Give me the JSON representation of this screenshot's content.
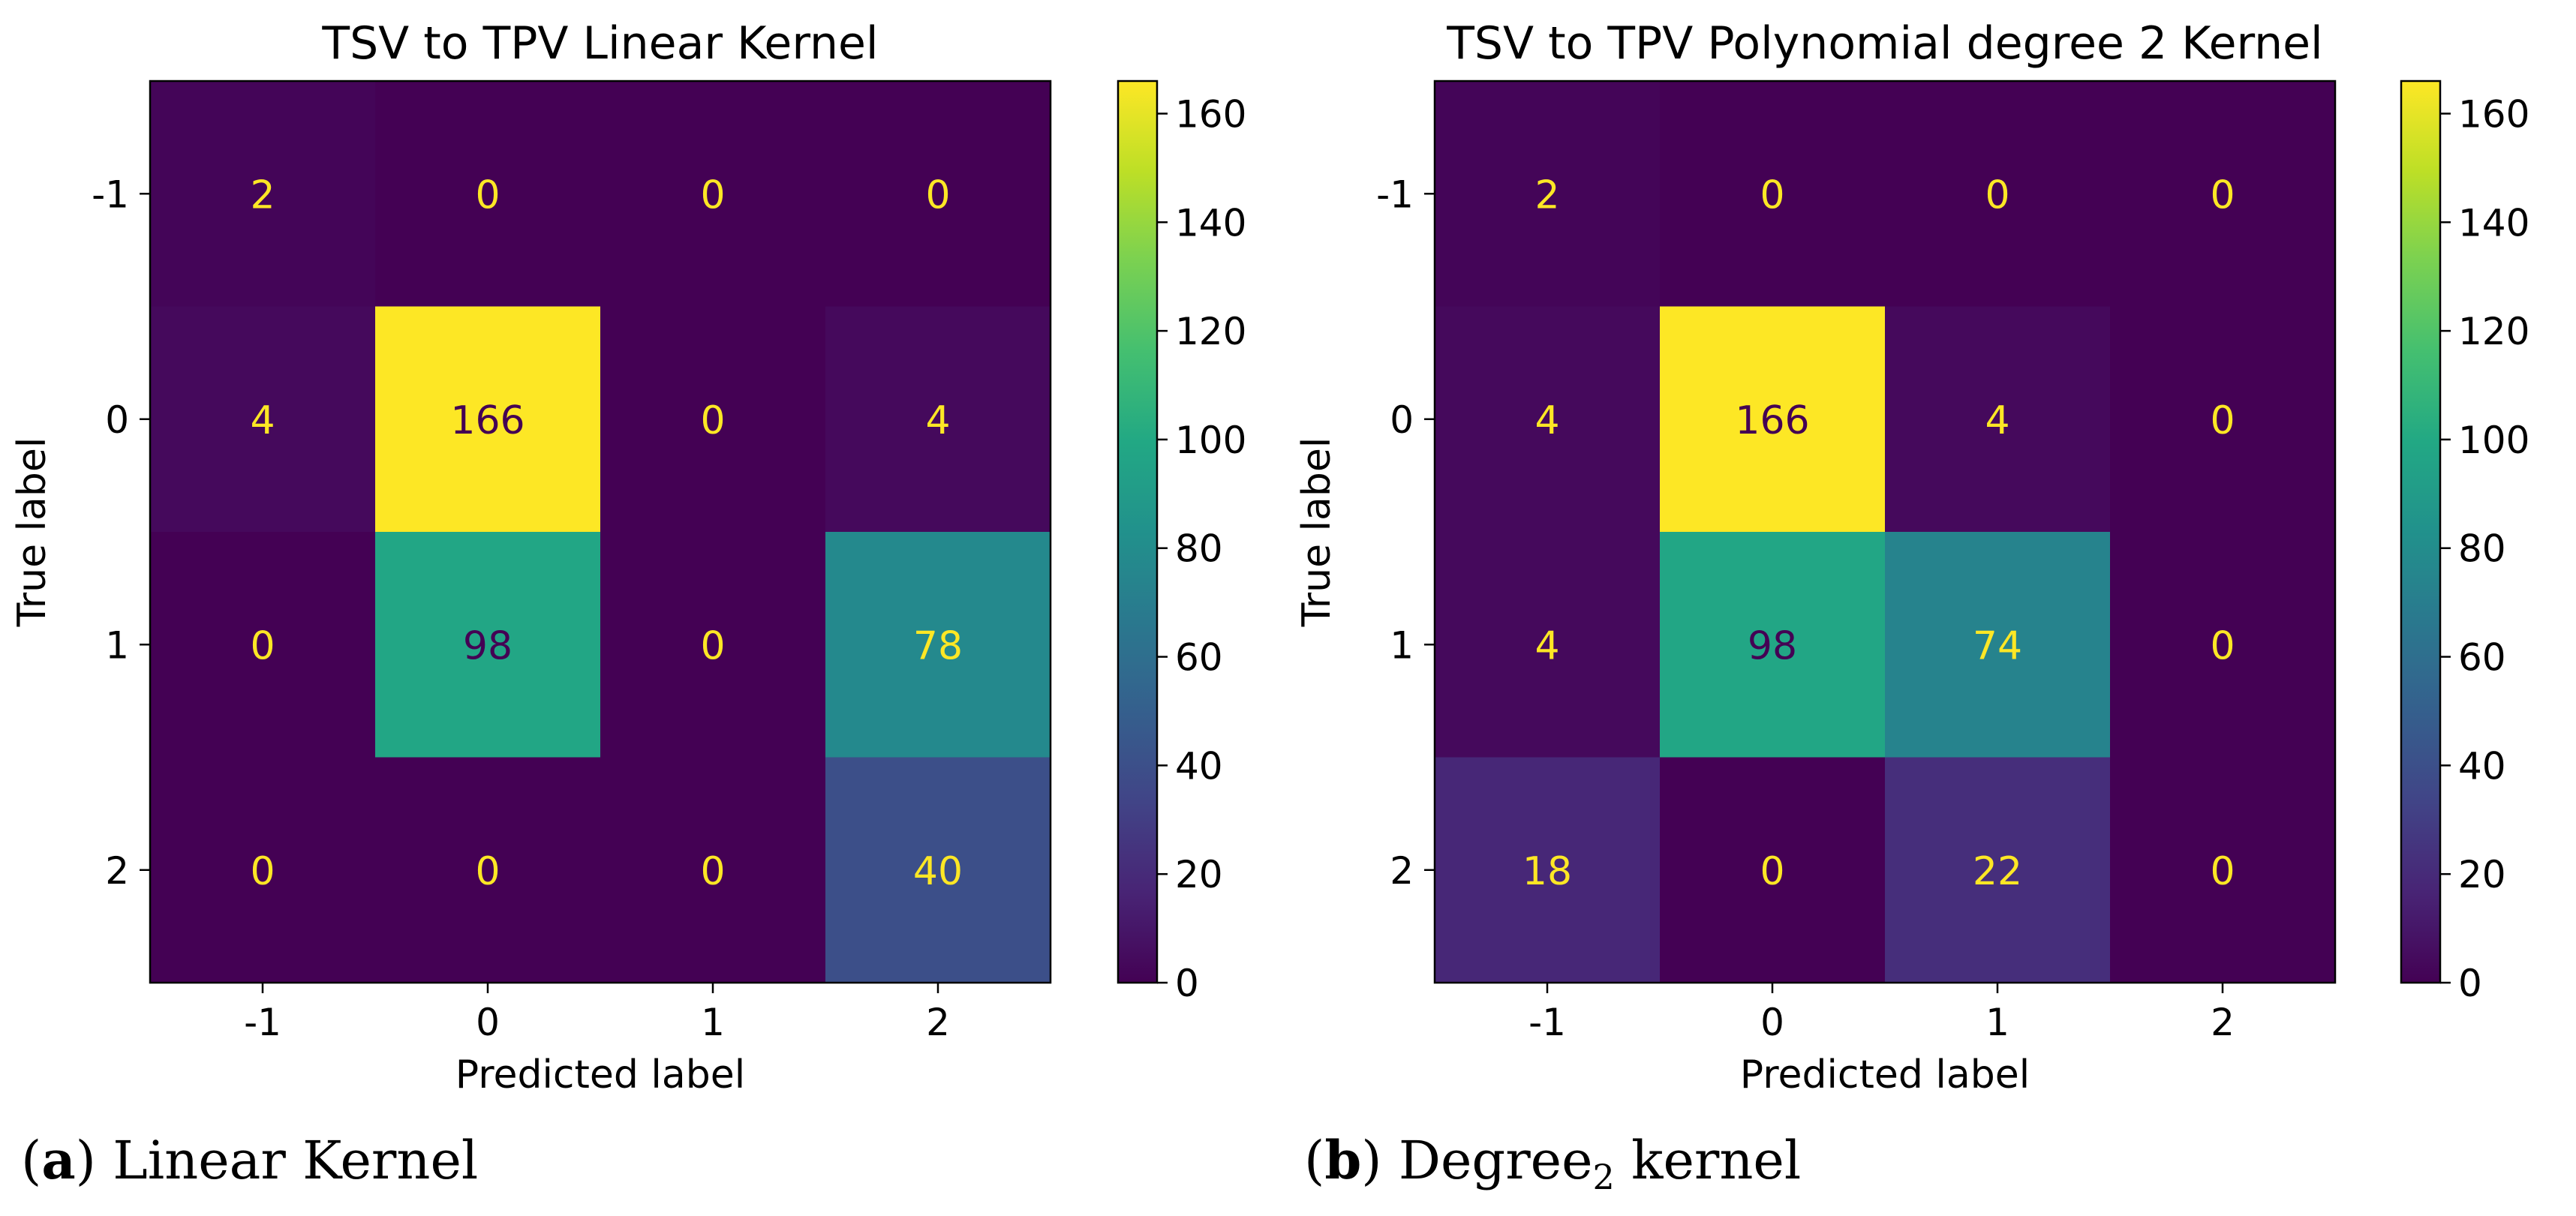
{
  "chart_data": [
    {
      "type": "heatmap",
      "title": "TSV to TPV Linear Kernel",
      "xlabel": "Predicted label",
      "ylabel": "True label",
      "x_tick_labels": [
        "-1",
        "0",
        "1",
        "2"
      ],
      "y_tick_labels": [
        "-1",
        "0",
        "1",
        "2"
      ],
      "matrix": [
        [
          2,
          0,
          0,
          0
        ],
        [
          4,
          166,
          0,
          4
        ],
        [
          0,
          98,
          0,
          78
        ],
        [
          0,
          0,
          0,
          40
        ]
      ],
      "colorbar": {
        "colormap": "viridis",
        "range": [
          0,
          166
        ],
        "ticks": [
          0,
          20,
          40,
          60,
          80,
          100,
          120,
          140,
          160
        ]
      },
      "caption": {
        "letter": "a",
        "text": " Linear Kernel"
      }
    },
    {
      "type": "heatmap",
      "title": "TSV to TPV Polynomial degree 2 Kernel",
      "xlabel": "Predicted label",
      "ylabel": "True label",
      "x_tick_labels": [
        "-1",
        "0",
        "1",
        "2"
      ],
      "y_tick_labels": [
        "-1",
        "0",
        "1",
        "2"
      ],
      "matrix": [
        [
          2,
          0,
          0,
          0
        ],
        [
          4,
          166,
          4,
          0
        ],
        [
          4,
          98,
          74,
          0
        ],
        [
          18,
          0,
          22,
          0
        ]
      ],
      "colorbar": {
        "colormap": "viridis",
        "range": [
          0,
          166
        ],
        "ticks": [
          0,
          20,
          40,
          60,
          80,
          100,
          120,
          140,
          160
        ]
      },
      "caption": {
        "letter": "b",
        "text": " Degree",
        "subscript": "2",
        "suffix": " kernel"
      }
    }
  ]
}
